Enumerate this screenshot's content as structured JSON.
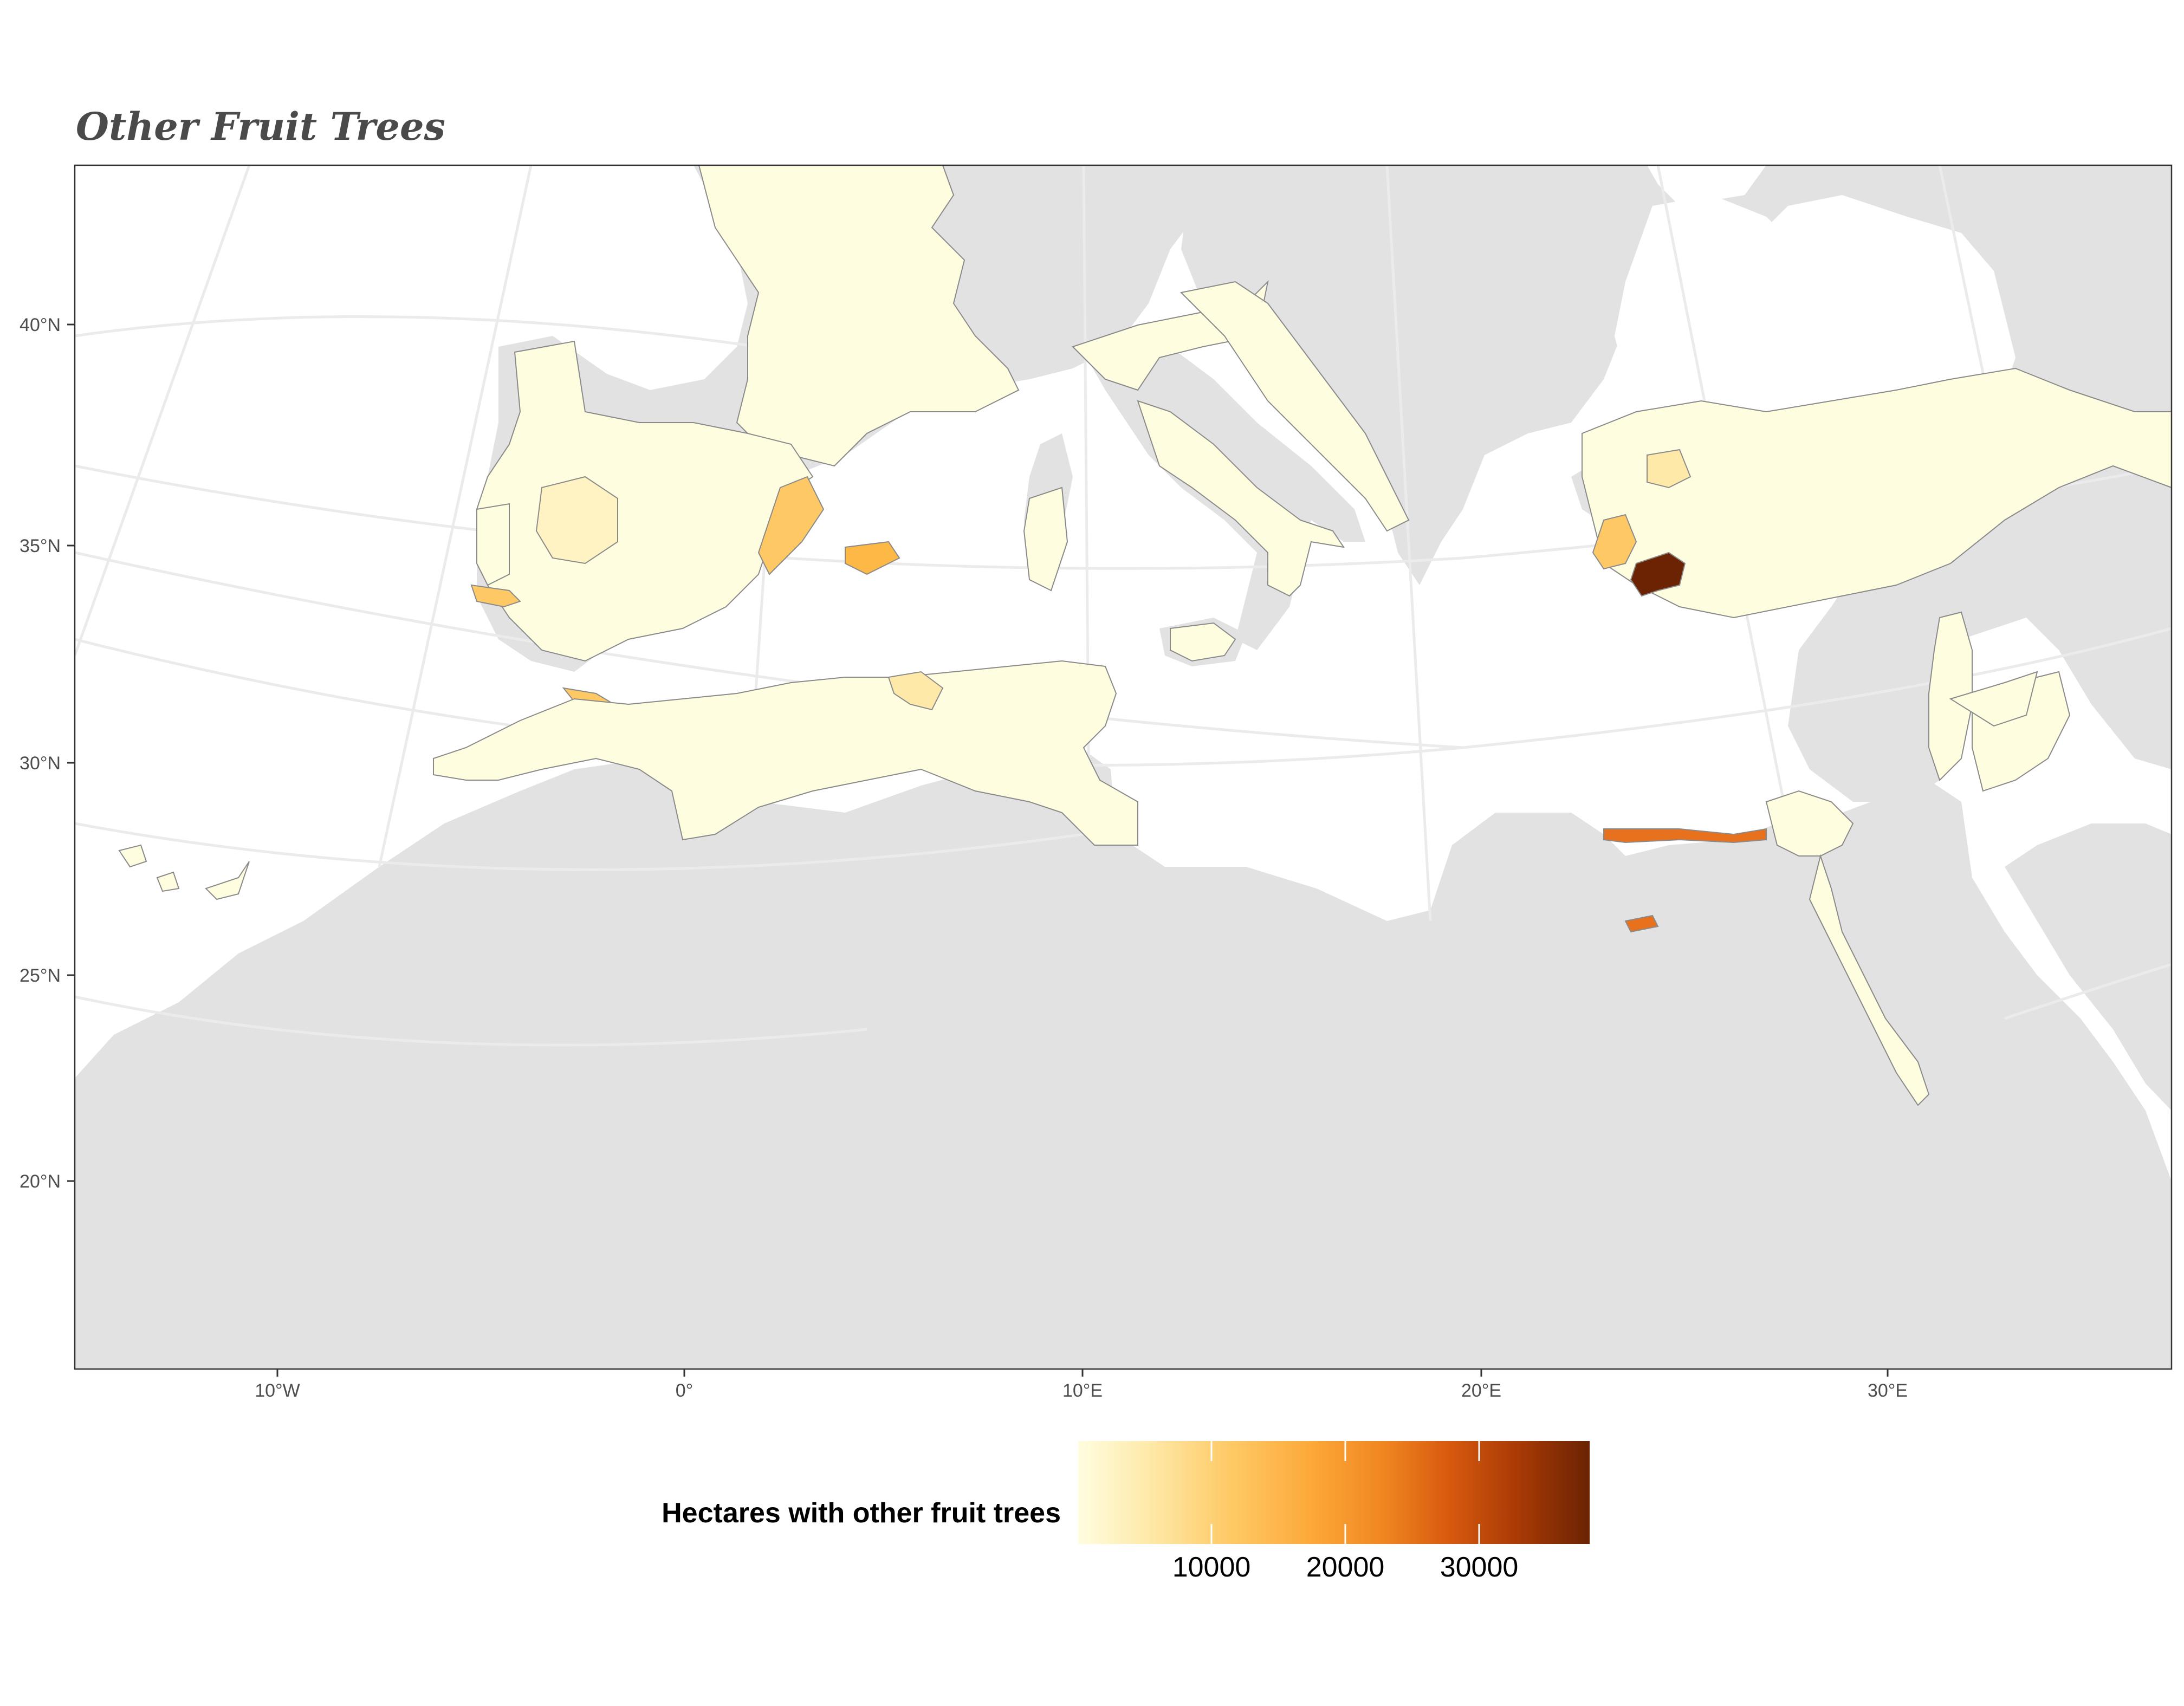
{
  "title": "Other Fruit Trees",
  "x_axis_labels": [
    "10°W",
    "0°",
    "10°E",
    "20°E",
    "30°E"
  ],
  "y_axis_labels": [
    "40°N",
    "35°N",
    "30°N",
    "25°N",
    "20°N"
  ],
  "legend": {
    "title": "Hectares with other fruit trees",
    "ticks": [
      "10000",
      "20000",
      "30000"
    ],
    "colors": [
      "#fffde0",
      "#fee9a8",
      "#fec965",
      "#fdaa3a",
      "#f08520",
      "#d95b0f",
      "#a83a05",
      "#6b2303"
    ]
  },
  "colors": {
    "ocean": "#ffffff",
    "land_no_data": "#e2e2e2",
    "region_low": "#fffde0",
    "region_high": "#6b2303",
    "border": "#8a8a8a"
  }
}
